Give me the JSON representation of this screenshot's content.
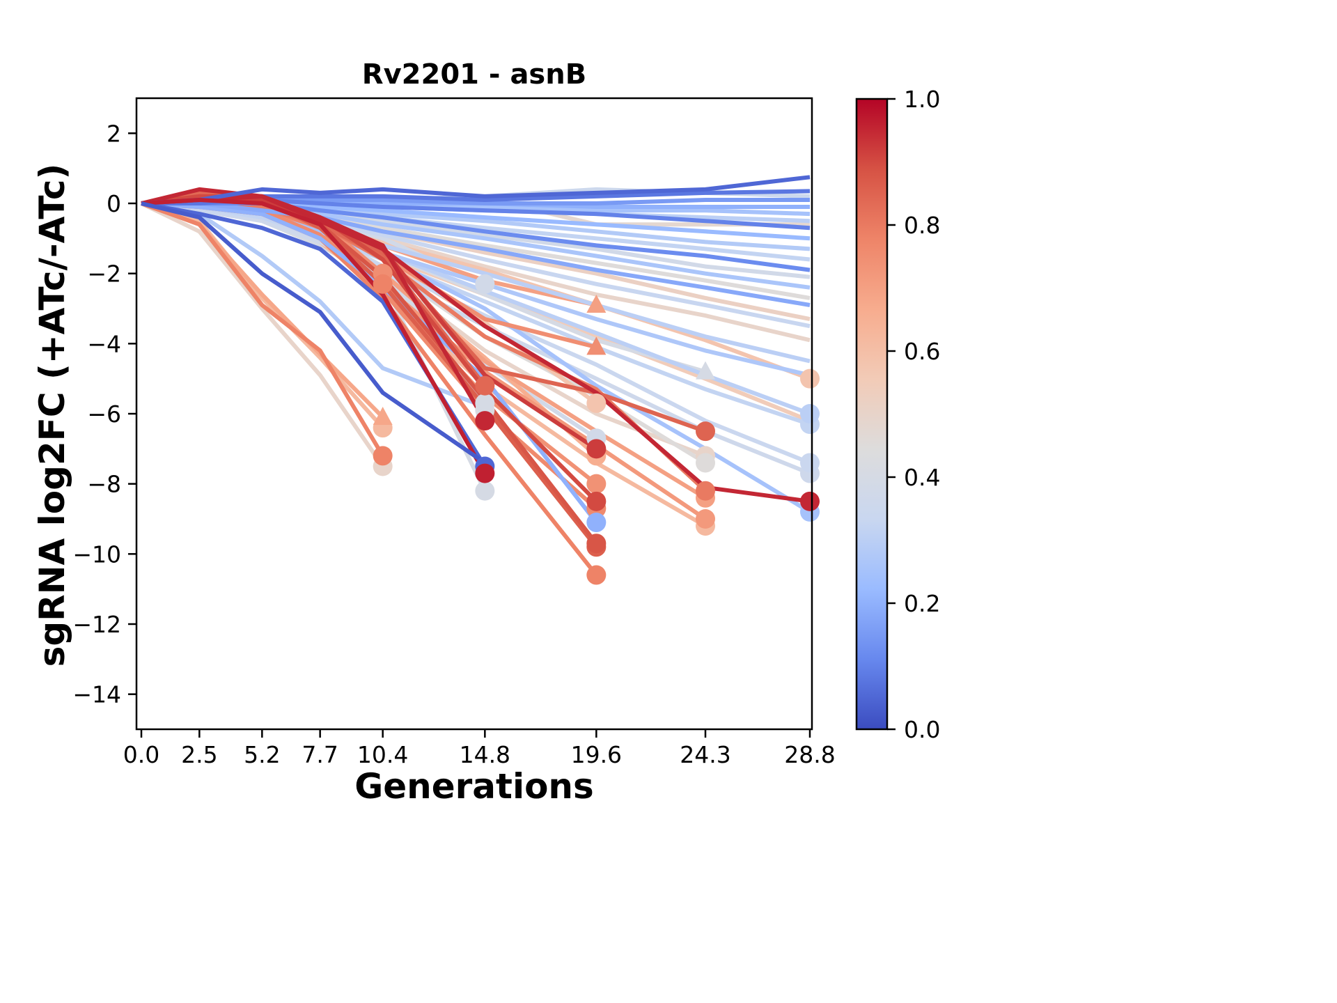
{
  "chart_data": {
    "type": "line",
    "title": "Rv2201 - asnB",
    "xlabel": "Generations",
    "ylabel": "sgRNA log2FC (+ATc/-ATc)",
    "xlim": [
      -0.2,
      29.0
    ],
    "ylim": [
      -15,
      3
    ],
    "x_ticks": [
      0.0,
      2.5,
      5.2,
      7.7,
      10.4,
      14.8,
      19.6,
      24.3,
      28.8
    ],
    "x_tick_labels": [
      "0.0",
      "2.5",
      "5.2",
      "7.7",
      "10.4",
      "14.8",
      "19.6",
      "24.3",
      "28.8"
    ],
    "y_ticks": [
      2,
      0,
      -2,
      -4,
      -6,
      -8,
      -10,
      -12,
      -14
    ],
    "y_tick_labels": [
      "2",
      "0",
      "−2",
      "−4",
      "−6",
      "−8",
      "−10",
      "−12",
      "−14"
    ],
    "grid": false,
    "colorbar": {
      "colormap": "coolwarm",
      "range": [
        0.0,
        1.0
      ],
      "ticks": [
        0.0,
        0.2,
        0.4,
        0.6,
        0.8,
        1.0
      ],
      "tick_labels": [
        "0.0",
        "0.2",
        "0.4",
        "0.6",
        "0.8",
        "1.0"
      ],
      "stops": [
        "#3b4cc0",
        "#6788ee",
        "#9abbff",
        "#c9d7f0",
        "#dddcdc",
        "#f2cbb7",
        "#f7ac8e",
        "#ee8468",
        "#d65244",
        "#b40426"
      ]
    },
    "x": [
      0.0,
      2.5,
      5.2,
      7.7,
      10.4,
      14.8,
      19.6,
      24.3,
      28.8
    ],
    "series": [
      {
        "value": 0.05,
        "marker": "none",
        "y": [
          0.0,
          0.1,
          0.4,
          0.3,
          0.4,
          0.2,
          0.3,
          0.4,
          0.75
        ]
      },
      {
        "value": 0.08,
        "marker": "none",
        "y": [
          0.0,
          0.0,
          0.2,
          0.2,
          0.2,
          0.1,
          0.2,
          0.3,
          0.35
        ]
      },
      {
        "value": 0.15,
        "marker": "none",
        "y": [
          0.0,
          0.0,
          0.1,
          0.1,
          0.1,
          0.0,
          0.0,
          0.1,
          0.1
        ]
      },
      {
        "value": 0.2,
        "marker": "none",
        "y": [
          0.0,
          0.1,
          0.1,
          0.0,
          0.0,
          0.0,
          -0.1,
          -0.1,
          -0.1
        ]
      },
      {
        "value": 0.25,
        "marker": "none",
        "y": [
          0.0,
          0.0,
          0.0,
          0.0,
          -0.1,
          -0.1,
          -0.2,
          -0.2,
          -0.3
        ]
      },
      {
        "value": 0.3,
        "marker": "none",
        "y": [
          0.0,
          0.0,
          0.0,
          -0.1,
          -0.1,
          -0.2,
          -0.3,
          -0.4,
          -0.5
        ]
      },
      {
        "value": 0.1,
        "marker": "none",
        "y": [
          0.0,
          0.0,
          0.1,
          0.0,
          -0.1,
          -0.2,
          -0.3,
          -0.5,
          -0.7
        ]
      },
      {
        "value": 0.35,
        "marker": "none",
        "y": [
          0.0,
          0.0,
          0.0,
          0.1,
          0.1,
          0.2,
          0.4,
          0.3,
          0.2
        ]
      },
      {
        "value": 0.48,
        "marker": "none",
        "y": [
          0.0,
          -0.1,
          0.0,
          0.0,
          -0.1,
          0.15,
          -0.6,
          -0.6,
          -0.6
        ]
      },
      {
        "value": 0.22,
        "marker": "none",
        "y": [
          0.0,
          0.0,
          0.0,
          -0.1,
          -0.2,
          -0.4,
          -0.6,
          -0.8,
          -1.0
        ]
      },
      {
        "value": 0.28,
        "marker": "none",
        "y": [
          0.0,
          0.0,
          0.0,
          -0.1,
          -0.3,
          -0.5,
          -0.8,
          -1.1,
          -1.3
        ]
      },
      {
        "value": 0.32,
        "marker": "none",
        "y": [
          0.0,
          0.0,
          -0.1,
          -0.2,
          -0.4,
          -0.7,
          -1.0,
          -1.3,
          -1.6
        ]
      },
      {
        "value": 0.12,
        "marker": "none",
        "y": [
          0.0,
          0.0,
          0.0,
          -0.2,
          -0.4,
          -0.8,
          -1.2,
          -1.5,
          -1.9
        ]
      },
      {
        "value": 0.38,
        "marker": "none",
        "y": [
          0.0,
          0.0,
          -0.1,
          -0.3,
          -0.5,
          -0.9,
          -1.3,
          -1.8,
          -2.1
        ]
      },
      {
        "value": 0.26,
        "marker": "none",
        "y": [
          0.0,
          0.0,
          -0.1,
          -0.3,
          -0.6,
          -1.0,
          -1.5,
          -2.0,
          -2.4
        ]
      },
      {
        "value": 0.45,
        "marker": "none",
        "y": [
          0.0,
          0.0,
          -0.1,
          -0.4,
          -0.7,
          -1.2,
          -1.7,
          -2.2,
          -2.7
        ]
      },
      {
        "value": 0.18,
        "marker": "none",
        "y": [
          0.0,
          0.0,
          -0.2,
          -0.4,
          -0.8,
          -1.3,
          -1.9,
          -2.4,
          -2.9
        ]
      },
      {
        "value": 0.52,
        "marker": "none",
        "y": [
          0.0,
          0.0,
          -0.1,
          -0.4,
          -0.8,
          -1.4,
          -2.0,
          -2.7,
          -3.3
        ]
      },
      {
        "value": 0.33,
        "marker": "none",
        "y": [
          0.0,
          -0.1,
          -0.2,
          -0.5,
          -0.9,
          -1.6,
          -2.3,
          -2.9,
          -3.5
        ]
      },
      {
        "value": 0.5,
        "marker": "none",
        "y": [
          0.0,
          -0.1,
          -0.2,
          -0.6,
          -1.0,
          -1.8,
          -2.6,
          -3.2,
          -3.9
        ]
      },
      {
        "value": 0.3,
        "marker": "none",
        "y": [
          0.0,
          -0.1,
          -0.3,
          -0.7,
          -1.2,
          -2.0,
          -2.9,
          -3.8,
          -4.5
        ]
      },
      {
        "value": 0.27,
        "marker": "none",
        "y": [
          0.0,
          -0.1,
          -0.3,
          -0.8,
          -1.4,
          -2.3,
          -3.3,
          -4.2,
          -4.9
        ]
      },
      {
        "value": 0.58,
        "marker": "circle",
        "y": [
          0.0,
          0.0,
          -0.2,
          -0.6,
          -1.1,
          -1.9,
          -2.9,
          -3.9,
          -5.0
        ]
      },
      {
        "value": 0.3,
        "marker": "circle",
        "y": [
          0.0,
          -0.1,
          -0.3,
          -0.8,
          -1.4,
          -2.5,
          -3.7,
          -4.9,
          -6.0
        ]
      },
      {
        "value": 0.32,
        "marker": "circle",
        "y": [
          0.0,
          -0.1,
          -0.4,
          -0.9,
          -1.6,
          -2.8,
          -4.1,
          -5.3,
          -6.3
        ]
      },
      {
        "value": 0.34,
        "marker": "circle",
        "y": [
          0.0,
          -0.2,
          -0.4,
          -1.0,
          -1.8,
          -3.2,
          -4.6,
          -6.2,
          -7.4
        ]
      },
      {
        "value": 0.36,
        "marker": "circle",
        "y": [
          0.0,
          -0.2,
          -0.5,
          -1.1,
          -2.0,
          -3.5,
          -5.0,
          -6.5,
          -7.7
        ]
      },
      {
        "value": 0.55,
        "marker": "none",
        "y": [
          0.0,
          -0.1,
          -0.3,
          -0.8,
          -1.5,
          -2.6,
          -3.8,
          -5.0,
          -6.2
        ]
      },
      {
        "value": 0.95,
        "marker": "circle",
        "y": [
          0.0,
          0.1,
          0.2,
          -0.5,
          -1.3,
          -3.5,
          -5.4,
          -8.1,
          -8.5
        ]
      },
      {
        "value": 0.25,
        "marker": "circle",
        "y": [
          0.0,
          -0.1,
          -0.3,
          -0.8,
          -1.5,
          -3.0,
          -5.2,
          -7.0,
          -8.8
        ]
      },
      {
        "value": 0.85,
        "marker": "circle",
        "y": [
          0.0,
          0.1,
          0.1,
          -0.4,
          -1.4,
          -4.7,
          -5.4,
          -6.5
        ]
      },
      {
        "value": 0.8,
        "marker": "circle",
        "y": [
          0.0,
          0.0,
          -0.1,
          -0.6,
          -1.6,
          -3.8,
          -5.3,
          -8.2
        ]
      },
      {
        "value": 0.7,
        "marker": "circle",
        "y": [
          0.0,
          0.0,
          -0.2,
          -0.8,
          -2.0,
          -4.5,
          -6.5,
          -8.4
        ]
      },
      {
        "value": 0.72,
        "marker": "circle",
        "y": [
          0.0,
          -0.1,
          -0.3,
          -1.0,
          -2.3,
          -4.8,
          -6.9,
          -9.0
        ]
      },
      {
        "value": 0.62,
        "marker": "circle",
        "y": [
          0.0,
          -0.1,
          -0.3,
          -1.1,
          -2.5,
          -5.2,
          -7.4,
          -9.2
        ]
      },
      {
        "value": 0.45,
        "marker": "circle",
        "y": [
          0.0,
          -0.1,
          -0.2,
          -0.8,
          -1.8,
          -3.8,
          -5.5,
          -7.4
        ]
      },
      {
        "value": 0.5,
        "marker": "circle",
        "y": [
          0.0,
          -0.1,
          -0.3,
          -0.9,
          -2.0,
          -4.2,
          -6.0,
          -7.2
        ]
      },
      {
        "value": 0.4,
        "marker": "triangle",
        "y": [
          0.0,
          -0.1,
          -0.2,
          -0.7,
          -1.4,
          -2.6,
          -3.9,
          -4.8
        ]
      },
      {
        "value": 0.7,
        "marker": "triangle",
        "y": [
          0.0,
          0.0,
          -0.1,
          -0.5,
          -1.2,
          -2.2,
          -2.9
        ]
      },
      {
        "value": 0.75,
        "marker": "triangle",
        "y": [
          0.0,
          0.0,
          -0.1,
          -0.6,
          -1.5,
          -3.3,
          -4.1
        ]
      },
      {
        "value": 0.58,
        "marker": "circle",
        "y": [
          0.0,
          0.0,
          -0.2,
          -0.7,
          -1.6,
          -3.4,
          -5.7
        ]
      },
      {
        "value": 0.92,
        "marker": "circle",
        "y": [
          0.0,
          0.1,
          0.1,
          -0.5,
          -1.3,
          -4.9,
          -7.0
        ]
      },
      {
        "value": 0.9,
        "marker": "circle",
        "y": [
          0.0,
          0.2,
          0.2,
          -0.4,
          -1.6,
          -5.3,
          -8.5
        ]
      },
      {
        "value": 0.88,
        "marker": "circle",
        "y": [
          0.0,
          0.1,
          0.0,
          -0.6,
          -2.1,
          -5.6,
          -9.7
        ]
      },
      {
        "value": 0.86,
        "marker": "circle",
        "y": [
          0.0,
          0.2,
          0.1,
          -0.7,
          -2.3,
          -5.8,
          -9.8
        ]
      },
      {
        "value": 0.74,
        "marker": "circle",
        "y": [
          0.0,
          0.0,
          -0.1,
          -0.8,
          -2.4,
          -5.5,
          -8.0
        ]
      },
      {
        "value": 0.76,
        "marker": "circle",
        "y": [
          0.0,
          0.0,
          -0.2,
          -0.9,
          -2.5,
          -5.9,
          -8.7
        ]
      },
      {
        "value": 0.78,
        "marker": "circle",
        "y": [
          0.0,
          -0.1,
          -0.3,
          -1.0,
          -2.7,
          -6.6,
          -10.6
        ]
      },
      {
        "value": 0.2,
        "marker": "circle",
        "y": [
          0.0,
          -0.1,
          -0.3,
          -1.0,
          -2.4,
          -5.0,
          -9.1
        ]
      },
      {
        "value": 0.66,
        "marker": "circle",
        "y": [
          0.0,
          0.0,
          -0.2,
          -0.7,
          -2.0,
          -4.4,
          -7.2
        ]
      },
      {
        "value": 0.38,
        "marker": "circle",
        "y": [
          0.0,
          -0.1,
          -0.3,
          -0.9,
          -2.1,
          -4.6,
          -6.7
        ]
      },
      {
        "value": 0.84,
        "marker": "circle",
        "y": [
          0.0,
          0.3,
          0.1,
          -0.6,
          -1.5,
          -5.2
        ]
      },
      {
        "value": 0.95,
        "marker": "circle",
        "y": [
          0.0,
          0.4,
          0.2,
          -0.4,
          -1.2,
          -6.2
        ]
      },
      {
        "value": 0.4,
        "marker": "circle",
        "y": [
          0.0,
          -0.1,
          -0.2,
          -0.8,
          -1.8,
          -5.7
        ]
      },
      {
        "value": 0.42,
        "marker": "circle",
        "y": [
          0.0,
          -0.1,
          -0.3,
          -0.9,
          -2.0,
          -5.9
        ]
      },
      {
        "value": 0.38,
        "marker": "circle",
        "y": [
          0.0,
          0.0,
          -0.1,
          -0.5,
          -1.0,
          -2.3
        ]
      },
      {
        "value": 0.96,
        "marker": "circle",
        "y": [
          0.0,
          0.1,
          0.0,
          -0.6,
          -2.6,
          -7.7
        ]
      },
      {
        "value": 0.05,
        "marker": "circle",
        "y": [
          0.0,
          -0.3,
          -0.7,
          -1.3,
          -2.8,
          -7.5
        ]
      },
      {
        "value": 0.4,
        "marker": "circle",
        "y": [
          0.0,
          -0.2,
          -0.5,
          -1.2,
          -2.2,
          -8.2
        ]
      },
      {
        "value": 0.03,
        "marker": "none",
        "y": [
          0.0,
          -0.4,
          -2.0,
          -3.1,
          -5.4,
          -7.4
        ]
      },
      {
        "value": 0.28,
        "marker": "none",
        "y": [
          0.0,
          -0.3,
          -1.5,
          -2.8,
          -4.7,
          -5.8
        ]
      },
      {
        "value": 0.75,
        "marker": "circle",
        "y": [
          0.0,
          0.1,
          0.0,
          -0.5,
          -2.0
        ]
      },
      {
        "value": 0.78,
        "marker": "circle",
        "y": [
          0.0,
          0.0,
          -0.1,
          -0.7,
          -2.3
        ]
      },
      {
        "value": 0.68,
        "marker": "triangle",
        "y": [
          0.0,
          -0.6,
          -2.6,
          -4.3,
          -6.1
        ]
      },
      {
        "value": 0.62,
        "marker": "circle",
        "y": [
          0.0,
          -0.5,
          -2.7,
          -4.4,
          -6.4
        ]
      },
      {
        "value": 0.78,
        "marker": "circle",
        "y": [
          0.0,
          -0.6,
          -2.9,
          -4.2,
          -7.2
        ]
      },
      {
        "value": 0.5,
        "marker": "circle",
        "y": [
          0.0,
          -0.8,
          -3.0,
          -4.9,
          -7.5
        ]
      }
    ]
  }
}
